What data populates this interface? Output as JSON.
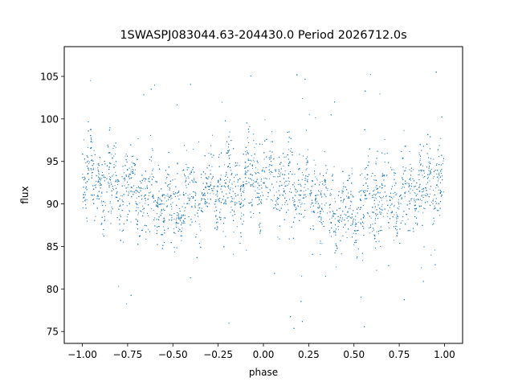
{
  "chart_data": {
    "type": "scatter",
    "title": "1SWASPJ083044.63-204430.0 Period 2026712.0s",
    "xlabel": "phase",
    "ylabel": "flux",
    "xlim": [
      -1.1,
      1.1
    ],
    "ylim": [
      73.6,
      108.5
    ],
    "xticks": [
      -1.0,
      -0.75,
      -0.5,
      -0.25,
      0.0,
      0.25,
      0.5,
      0.75,
      1.0
    ],
    "xtick_labels": [
      "−1.00",
      "−0.75",
      "−0.50",
      "−0.25",
      "0.00",
      "0.25",
      "0.50",
      "0.75",
      "1.00"
    ],
    "yticks": [
      75,
      80,
      85,
      90,
      95,
      100,
      105
    ],
    "ytick_labels": [
      "75",
      "80",
      "85",
      "90",
      "95",
      "100",
      "105"
    ],
    "grid": false,
    "legend": "none",
    "marker_color": "#1f77b4",
    "series": [
      {
        "x_range": [
          -1.0,
          1.0
        ],
        "typical_flux": 91,
        "flux_band": [
          85,
          97
        ],
        "outlier_range": [
          75,
          106
        ],
        "profile_x": [
          -1.0,
          -0.9,
          -0.75,
          -0.6,
          -0.5,
          -0.4,
          -0.25,
          -0.1,
          0.0,
          0.1,
          0.25,
          0.4,
          0.5,
          0.6,
          0.75,
          0.9,
          1.0
        ],
        "profile_mean_flux": [
          93.5,
          92.5,
          91.5,
          90.0,
          89.5,
          90.5,
          91.5,
          92.5,
          93.5,
          92.5,
          91.0,
          89.5,
          89.5,
          90.5,
          91.0,
          92.5,
          93.5
        ]
      }
    ]
  }
}
